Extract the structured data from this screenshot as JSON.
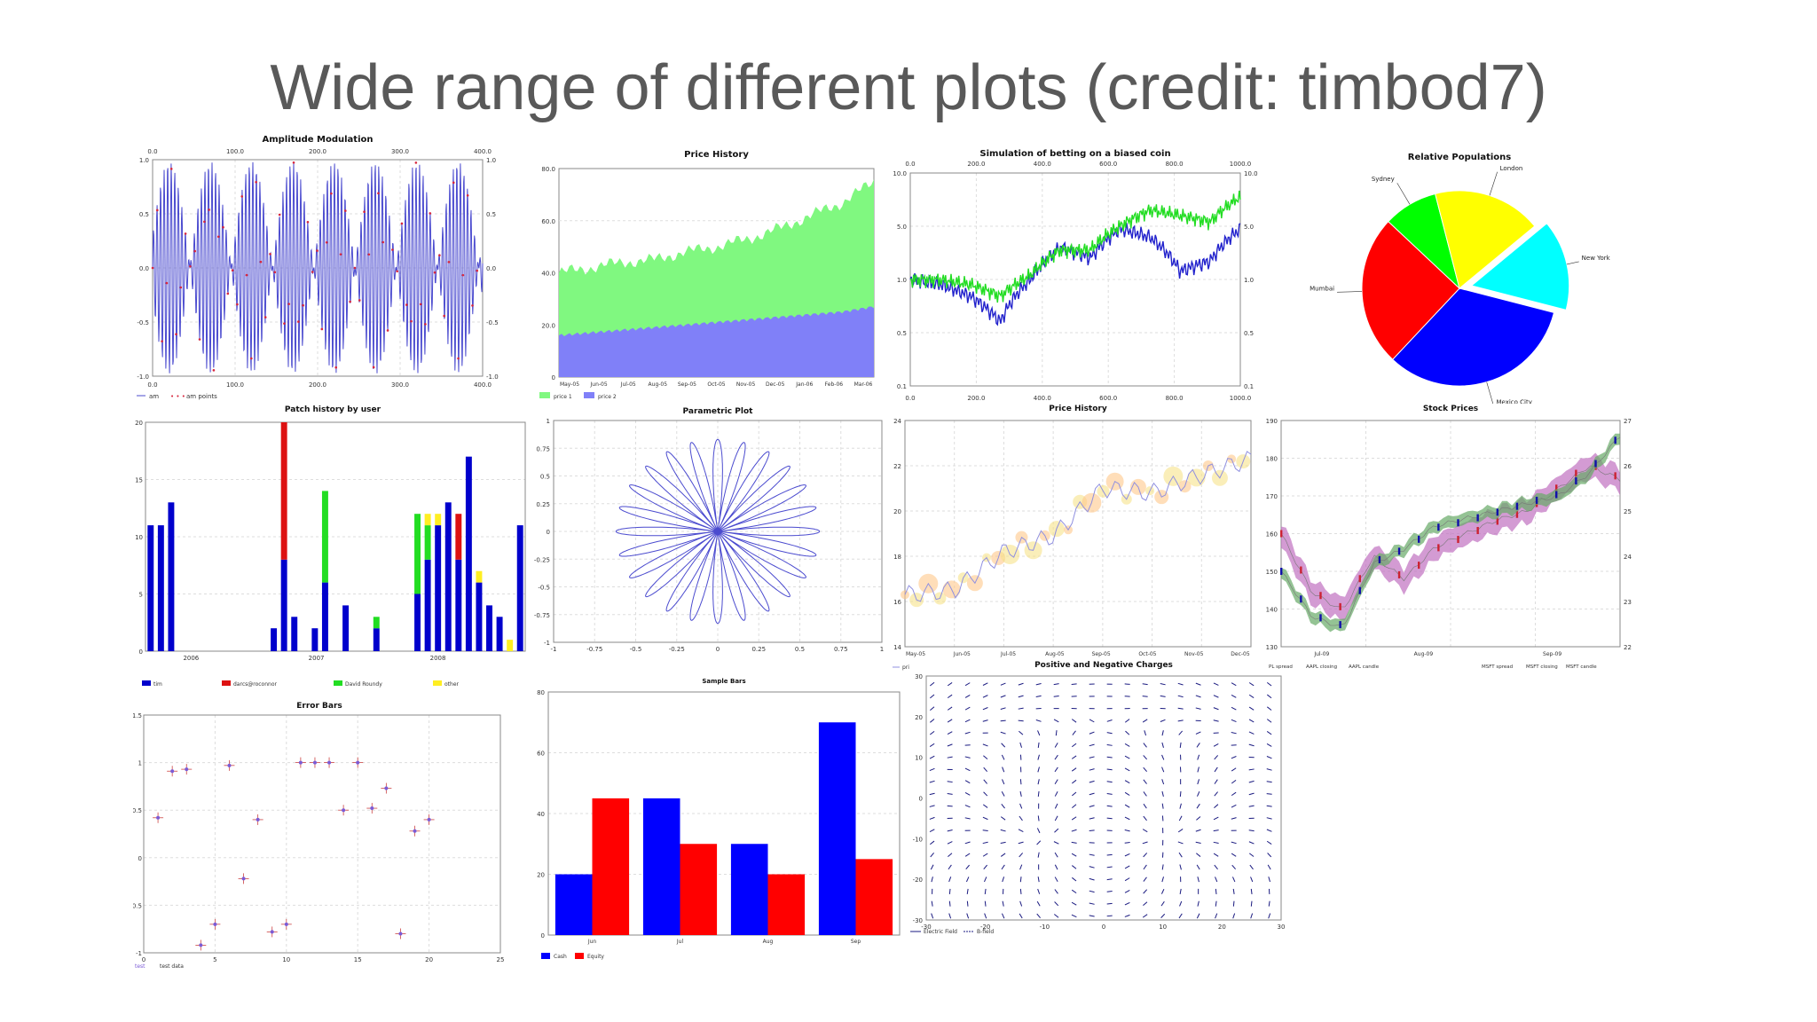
{
  "slide": {
    "title": "Wide range of different plots (credit: timbod7)"
  },
  "chart_data": [
    {
      "id": "am",
      "type": "line",
      "title": "Amplitude Modulation",
      "xlim": [
        0,
        400
      ],
      "ylim": [
        -1,
        1
      ],
      "x_ticks": [
        "0.0",
        "100.0",
        "200.0",
        "300.0",
        "400.0"
      ],
      "y_ticks": [
        "-1.0",
        "-0.5",
        "0.0",
        "0.5",
        "1.0"
      ],
      "series": [
        {
          "name": "am",
          "sample": [
            0,
            0.7,
            1,
            0.7,
            0,
            -0.7,
            -1,
            -0.7
          ]
        },
        {
          "name": "am points",
          "sample": [
            0.55,
            0.55,
            0.45,
            -0.45,
            -0.55,
            -0.55
          ]
        }
      ],
      "legend": [
        "am",
        "am points"
      ],
      "colors": {
        "line": "#4b4bcf",
        "points": "#d7263d"
      }
    },
    {
      "id": "price_area",
      "type": "area",
      "title": "Price History",
      "ylim": [
        0,
        80
      ],
      "y_ticks": [
        "0",
        "20.0",
        "40.0",
        "60.0",
        "80.0"
      ],
      "categories": [
        "May-05",
        "Jun-05",
        "Jul-05",
        "Aug-05",
        "Sep-05",
        "Oct-05",
        "Nov-05",
        "Dec-05",
        "Jan-06",
        "Feb-06",
        "Mar-06"
      ],
      "series": [
        {
          "name": "price 1",
          "values": [
            40,
            42,
            44,
            45,
            48,
            50,
            53,
            57,
            62,
            67,
            75
          ]
        },
        {
          "name": "price 2",
          "values": [
            16,
            17,
            18,
            19,
            20,
            21,
            22,
            23,
            24,
            25,
            27
          ]
        }
      ],
      "legend": [
        "price 1",
        "price 2"
      ],
      "colors": {
        "price1": "#80f880",
        "price2": "#8080f8"
      }
    },
    {
      "id": "betting",
      "type": "line",
      "title": "Simulation of betting on a biased coin",
      "xlim": [
        0,
        1000
      ],
      "ylim": [
        0.1,
        10
      ],
      "log_y": true,
      "x_ticks": [
        "0.0",
        "200.0",
        "400.0",
        "600.0",
        "800.0",
        "1000.0"
      ],
      "y_ticks": [
        "0.1",
        "0.5",
        "1.0",
        "5.0",
        "10.0"
      ],
      "series": [
        {
          "name": "",
          "values": [
            1,
            0.9,
            0.7,
            0.4,
            1.0,
            2.0,
            1.6,
            3.0,
            2.5,
            1.2,
            1.5,
            3.0
          ]
        },
        {
          "name": "",
          "values": [
            1,
            1.0,
            0.9,
            0.7,
            1.1,
            1.9,
            1.9,
            3.2,
            4.5,
            4.0,
            3.5,
            6.0
          ]
        }
      ],
      "colors": {
        "a": "#2222cc",
        "b": "#22dd22"
      }
    },
    {
      "id": "populations",
      "type": "pie",
      "title": "Relative Populations",
      "slices": [
        {
          "label": "New York",
          "value": 15
        },
        {
          "label": "Mexico City",
          "value": 33
        },
        {
          "label": "Mumbai",
          "value": 25
        },
        {
          "label": "Sydney",
          "value": 9
        },
        {
          "label": "London",
          "value": 18
        }
      ],
      "colors": [
        "#00ffff",
        "#0000ff",
        "#ff0000",
        "#00ff00",
        "#ffff00"
      ]
    },
    {
      "id": "patch",
      "type": "bar",
      "title": "Patch history by user",
      "ylim": [
        0,
        20
      ],
      "y_ticks": [
        "0",
        "5",
        "10",
        "15",
        "20"
      ],
      "x_ticks": [
        "2006",
        "2007",
        "2008"
      ],
      "series": [
        {
          "name": "tim",
          "values": [
            11,
            11,
            13,
            0,
            0,
            0,
            0,
            0,
            0,
            0,
            0,
            0,
            2,
            8,
            3,
            0,
            2,
            6,
            0,
            4,
            0,
            0,
            2,
            0,
            0,
            0,
            5,
            8,
            11,
            13,
            8,
            17,
            6,
            4,
            3,
            0,
            11
          ]
        },
        {
          "name": "darcs",
          "values": [
            0,
            0,
            0,
            0,
            0,
            0,
            0,
            0,
            0,
            0,
            0,
            0,
            0,
            12,
            0,
            0,
            0,
            0,
            0,
            0,
            0,
            0,
            0,
            0,
            0,
            0,
            0,
            0,
            0,
            0,
            4,
            0,
            0,
            0,
            0,
            0,
            0
          ]
        },
        {
          "name": "David Roundy",
          "values": [
            0,
            0,
            0,
            0,
            0,
            0,
            0,
            0,
            0,
            0,
            0,
            0,
            0,
            0,
            0,
            0,
            0,
            8,
            0,
            0,
            0,
            0,
            1,
            0,
            0,
            0,
            7,
            3,
            0,
            0,
            0,
            0,
            0,
            0,
            0,
            0,
            0
          ]
        },
        {
          "name": "other",
          "values": [
            0,
            0,
            0,
            0,
            0,
            0,
            0,
            0,
            0,
            0,
            0,
            0,
            0,
            0,
            0,
            0,
            0,
            0,
            0,
            0,
            0,
            0,
            0,
            0,
            0,
            0,
            0,
            1,
            1,
            0,
            0,
            0,
            1,
            0,
            0,
            1,
            0
          ]
        }
      ],
      "legend": [
        "tim",
        "darcs@roconnor",
        "David Roundy",
        "other"
      ],
      "colors": [
        "#0000cc",
        "#dd1111",
        "#22dd22",
        "#ffee22"
      ]
    },
    {
      "id": "parametric",
      "type": "line",
      "title": "Parametric Plot",
      "xlim": [
        -1,
        1
      ],
      "ylim": [
        -1,
        1
      ],
      "x_ticks": [
        "-1",
        "-0.75",
        "-0.5",
        "-0.25",
        "0",
        "0.25",
        "0.5",
        "0.75",
        "1"
      ],
      "y_ticks": [
        "-1",
        "-0.75",
        "-0.5",
        "-0.25",
        "0",
        "0.25",
        "0.5",
        "0.75",
        "1"
      ],
      "petals": 24,
      "colors": {
        "line": "#4b4bcf"
      }
    },
    {
      "id": "price_bubble",
      "type": "scatter",
      "title": "Price History",
      "ylim": [
        14,
        24
      ],
      "y_ticks": [
        "14",
        "16",
        "18",
        "20",
        "22",
        "24"
      ],
      "categories": [
        "May-05",
        "Jun-05",
        "Jul-05",
        "Aug-05",
        "Sep-05",
        "Oct-05",
        "Nov-05",
        "Dec-05"
      ],
      "values": [
        16.3,
        16.5,
        18.2,
        18.9,
        21.0,
        20.8,
        21.6,
        22.3
      ],
      "legend": [
        "pri"
      ],
      "colors": {
        "line": "#9090e0"
      }
    },
    {
      "id": "stocks",
      "type": "line",
      "title": "Stock Prices",
      "y_left_ticks": [
        "130",
        "140",
        "150",
        "160",
        "170",
        "180",
        "190"
      ],
      "y_right_ticks": [
        "22",
        "23",
        "24",
        "25",
        "26",
        "27"
      ],
      "x_ticks": [
        "Jul-09",
        "Aug-09",
        "Sep-09"
      ],
      "series": [
        {
          "name": "AAPL closing",
          "values": [
            150,
            138,
            135,
            152,
            156,
            162,
            164,
            166,
            168,
            170,
            176,
            186
          ]
        },
        {
          "name": "MSFT closing",
          "values": [
            24.5,
            23.2,
            22.8,
            24.0,
            23.5,
            24.2,
            24.5,
            24.8,
            25.0,
            25.5,
            26.0,
            25.7
          ]
        }
      ],
      "legend": [
        "PL spread",
        "AAPL closing",
        "AAPL candle",
        "MSFT spread",
        "MSFT closing",
        "MSFT candle"
      ],
      "colors": {
        "aapl": "#66aa66",
        "msft": "#c070c0"
      }
    },
    {
      "id": "error",
      "type": "scatter",
      "title": "Error Bars",
      "xlim": [
        0,
        25
      ],
      "ylim": [
        -1,
        1.5
      ],
      "x_ticks": [
        "0",
        "5",
        "10",
        "15",
        "20",
        "25"
      ],
      "y_ticks": [
        "-1",
        "-0.5",
        "0",
        "0.5",
        "1",
        "1.5"
      ],
      "points": [
        [
          1,
          0.42
        ],
        [
          2,
          0.91
        ],
        [
          3,
          0.93
        ],
        [
          4,
          -0.92
        ],
        [
          5,
          -0.7
        ],
        [
          6,
          0.97
        ],
        [
          7,
          -0.22
        ],
        [
          8,
          0.4
        ],
        [
          9,
          -0.78
        ],
        [
          10,
          -0.7
        ],
        [
          11,
          1.0
        ],
        [
          12,
          1.0
        ],
        [
          13,
          1.0
        ],
        [
          14,
          0.5
        ],
        [
          15,
          1.0
        ],
        [
          16,
          0.52
        ],
        [
          17,
          0.73
        ],
        [
          18,
          -0.8
        ],
        [
          19,
          0.28
        ],
        [
          20,
          0.4
        ]
      ],
      "legend": [
        "test",
        "test data"
      ],
      "colors": {
        "point": "#7b5bd6",
        "bar": "#cc4444"
      }
    },
    {
      "id": "sample_bars",
      "type": "bar",
      "title": "Sample Bars",
      "ylim": [
        0,
        80
      ],
      "y_ticks": [
        "0",
        "20",
        "40",
        "60",
        "80"
      ],
      "categories": [
        "Jun",
        "Jul",
        "Aug",
        "Sep"
      ],
      "series": [
        {
          "name": "Cash",
          "values": [
            20,
            45,
            30,
            70
          ]
        },
        {
          "name": "Equity",
          "values": [
            45,
            30,
            20,
            25
          ]
        }
      ],
      "legend": [
        "Cash",
        "Equity"
      ],
      "colors": [
        "#0000ff",
        "#ff0000"
      ]
    },
    {
      "id": "charges",
      "type": "vector-field",
      "title": "Positive and Negative Charges",
      "xlim": [
        -30,
        30
      ],
      "ylim": [
        -30,
        30
      ],
      "x_ticks": [
        "-30",
        "-20",
        "-10",
        "0",
        "10",
        "20",
        "30"
      ],
      "y_ticks": [
        "-30",
        "-20",
        "-10",
        "0",
        "10",
        "20",
        "30"
      ],
      "legend": [
        "Electric Field",
        "B-field"
      ],
      "colors": {
        "arrow": "#1a1a80"
      }
    }
  ]
}
